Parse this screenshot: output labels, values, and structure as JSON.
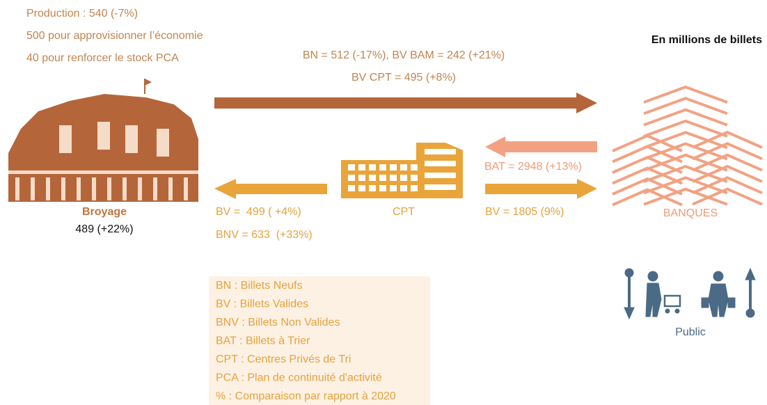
{
  "header": {
    "production": [
      "Production : 540 (-7%)",
      "500 pour approvisionner l’économie",
      "40 pour renforcer le stock PCA"
    ],
    "unit": "En millions de billets"
  },
  "flows": {
    "bam_to_banks": [
      "BN = 512 (-17%), BV BAM = 242 (+21%)",
      "BV CPT = 495 (+8%)"
    ],
    "banks_to_cpt": "BAT = 2948 (+13%)",
    "cpt_to_banks": "BV = 1805 (9%)",
    "cpt_to_bam": [
      "BV =  499 ( +4%)",
      "BNV = 633  (+33%)"
    ]
  },
  "nodes": {
    "bam": {
      "label": "Broyage",
      "value": "489 (+22%)"
    },
    "cpt": "CPT",
    "banks": "BANQUES",
    "public": "Public"
  },
  "legend": [
    "BN : Billets Neufs",
    "BV : Billets Valides",
    "BNV : Billets Non Valides",
    "BAT : Billets à Trier",
    "CPT : Centres Privés de Tri",
    "PCA : Plan de continuité d'activité",
    "% : Comparaison par rapport à 2020"
  ]
}
